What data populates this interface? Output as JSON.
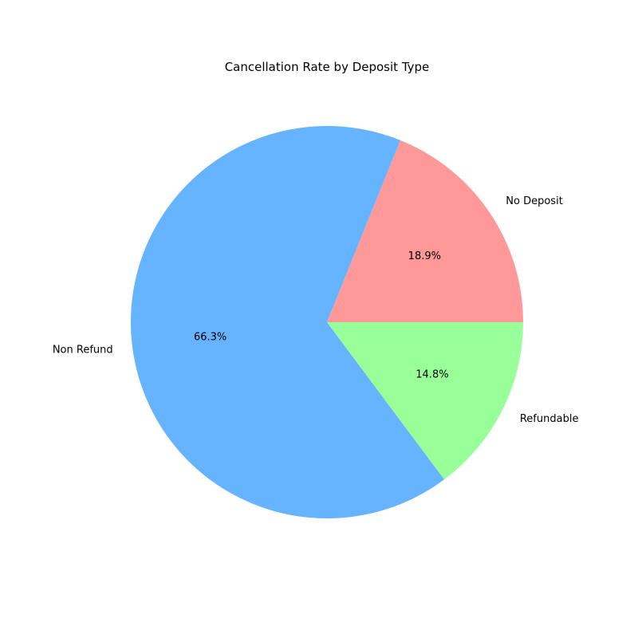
{
  "chart_data": {
    "type": "pie",
    "title": "Cancellation Rate by Deposit Type",
    "slices": [
      {
        "label": "No Deposit",
        "value": 18.9,
        "pct_text": "18.9%",
        "color": "#ff9999"
      },
      {
        "label": "Non Refund",
        "value": 66.3,
        "pct_text": "66.3%",
        "color": "#66b3ff"
      },
      {
        "label": "Refundable",
        "value": 14.8,
        "pct_text": "14.8%",
        "color": "#99ff99"
      }
    ],
    "start_angle_deg": 0,
    "direction": "counterclockwise",
    "legend": "none"
  }
}
